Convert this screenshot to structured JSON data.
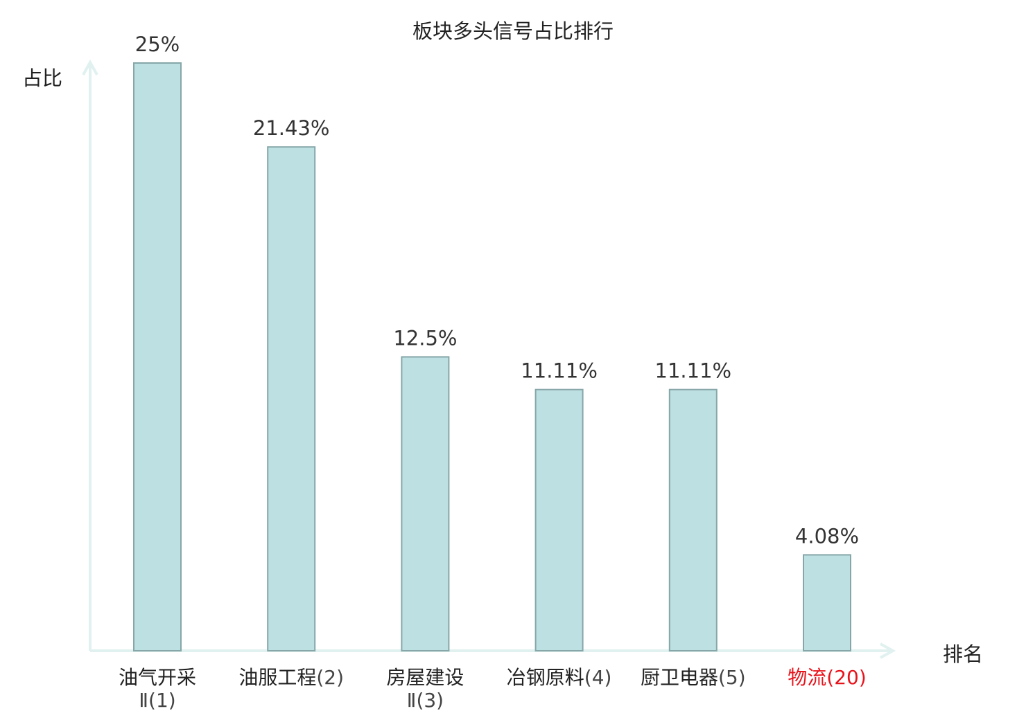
{
  "chart_data": {
    "type": "bar",
    "title": "板块多头信号占比排行",
    "ylabel": "占比",
    "xlabel": "排名",
    "categories": [
      {
        "name": "油气开采",
        "suffix": "Ⅱ",
        "rank": "(1)"
      },
      {
        "name": "油服工程",
        "suffix": "",
        "rank": "(2)"
      },
      {
        "name": "房屋建设",
        "suffix": "Ⅱ",
        "rank": "(3)"
      },
      {
        "name": "冶钢原料",
        "suffix": "",
        "rank": "(4)"
      },
      {
        "name": "厨卫电器",
        "suffix": "",
        "rank": "(5)"
      },
      {
        "name": "物流",
        "suffix": "",
        "rank": "(20)",
        "highlight": true
      }
    ],
    "values": [
      25,
      21.43,
      12.5,
      11.11,
      11.11,
      4.08
    ],
    "value_labels": [
      "25%",
      "21.43%",
      "12.5%",
      "11.11%",
      "11.11%",
      "4.08%"
    ],
    "ylim": [
      0,
      25
    ],
    "grid": false,
    "colors": {
      "bar_fill": "#bde0e2",
      "bar_stroke": "#86a6a8",
      "axis": "#e0f1ef",
      "highlight": "#e8141c"
    }
  }
}
